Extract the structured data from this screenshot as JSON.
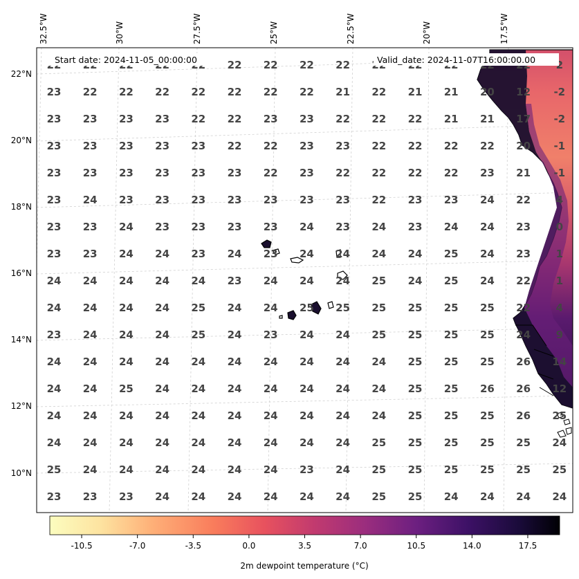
{
  "map": {
    "start_date_label": "Start date: 2024-11-05_00:00:00",
    "valid_date_label": "Valid_date: 2024-11-07T16:00:00.00",
    "lon_labels": [
      "32.5°W",
      "30°W",
      "27.5°W",
      "25°W",
      "22.5°W",
      "20°W",
      "17.5°W"
    ],
    "lat_labels": [
      "22°N",
      "20°N",
      "18°N",
      "16°N",
      "14°N",
      "12°N",
      "10°N"
    ],
    "grid_values": [
      [
        "22",
        "22",
        "22",
        "22",
        "22",
        "22",
        "22",
        "22",
        "22",
        "22",
        "22",
        "22",
        "22",
        "22",
        "2"
      ],
      [
        "23",
        "22",
        "22",
        "22",
        "22",
        "22",
        "22",
        "22",
        "21",
        "22",
        "21",
        "21",
        "20",
        "12",
        "-2"
      ],
      [
        "23",
        "23",
        "23",
        "23",
        "22",
        "22",
        "23",
        "23",
        "22",
        "22",
        "22",
        "21",
        "21",
        "17",
        "-2"
      ],
      [
        "23",
        "23",
        "23",
        "23",
        "23",
        "22",
        "22",
        "23",
        "23",
        "22",
        "22",
        "22",
        "22",
        "20",
        "-1"
      ],
      [
        "23",
        "23",
        "23",
        "23",
        "23",
        "23",
        "22",
        "23",
        "22",
        "22",
        "22",
        "22",
        "23",
        "21",
        "-1"
      ],
      [
        "23",
        "24",
        "23",
        "23",
        "23",
        "23",
        "23",
        "23",
        "23",
        "22",
        "23",
        "23",
        "24",
        "22",
        "4"
      ],
      [
        "23",
        "23",
        "24",
        "23",
        "23",
        "23",
        "23",
        "24",
        "23",
        "24",
        "23",
        "24",
        "24",
        "23",
        "0"
      ],
      [
        "23",
        "23",
        "24",
        "24",
        "23",
        "24",
        "23",
        "24",
        "24",
        "24",
        "24",
        "25",
        "24",
        "23",
        "1"
      ],
      [
        "24",
        "24",
        "24",
        "24",
        "24",
        "23",
        "24",
        "24",
        "24",
        "25",
        "24",
        "25",
        "24",
        "22",
        "1"
      ],
      [
        "24",
        "24",
        "24",
        "24",
        "25",
        "24",
        "24",
        "25",
        "25",
        "25",
        "25",
        "25",
        "25",
        "22",
        "4"
      ],
      [
        "23",
        "24",
        "24",
        "24",
        "25",
        "24",
        "23",
        "24",
        "24",
        "25",
        "25",
        "25",
        "25",
        "24",
        "9"
      ],
      [
        "24",
        "24",
        "24",
        "24",
        "24",
        "24",
        "24",
        "24",
        "24",
        "24",
        "25",
        "25",
        "25",
        "26",
        "14"
      ],
      [
        "24",
        "24",
        "25",
        "24",
        "24",
        "24",
        "24",
        "24",
        "24",
        "24",
        "25",
        "25",
        "26",
        "26",
        "12"
      ],
      [
        "24",
        "24",
        "24",
        "24",
        "24",
        "24",
        "24",
        "24",
        "24",
        "24",
        "25",
        "25",
        "25",
        "26",
        "25"
      ],
      [
        "24",
        "24",
        "24",
        "24",
        "24",
        "24",
        "24",
        "24",
        "24",
        "25",
        "25",
        "25",
        "25",
        "25",
        "24"
      ],
      [
        "25",
        "24",
        "24",
        "24",
        "24",
        "24",
        "24",
        "23",
        "24",
        "25",
        "25",
        "25",
        "25",
        "25",
        "25"
      ],
      [
        "23",
        "23",
        "23",
        "24",
        "24",
        "24",
        "24",
        "24",
        "24",
        "25",
        "25",
        "24",
        "24",
        "24",
        "24"
      ]
    ]
  },
  "colorbar": {
    "label": "2m dewpoint temperature ($^\\circ$C)",
    "label_display": "2m dewpoint temperature (°C)",
    "min": -12.5,
    "max": 19.5,
    "ticks": [
      "-10.5",
      "-7.0",
      "-3.5",
      "0.0",
      "3.5",
      "7.0",
      "10.5",
      "14.0",
      "17.5"
    ],
    "tick_values": [
      -10.5,
      -7.0,
      -3.5,
      0.0,
      3.5,
      7.0,
      10.5,
      14.0,
      17.5
    ],
    "colormap": "magma_r"
  },
  "colors": {
    "value_text": "#444444",
    "land_fill_dark": "#1a0f2e",
    "coast_line": "#000000"
  }
}
